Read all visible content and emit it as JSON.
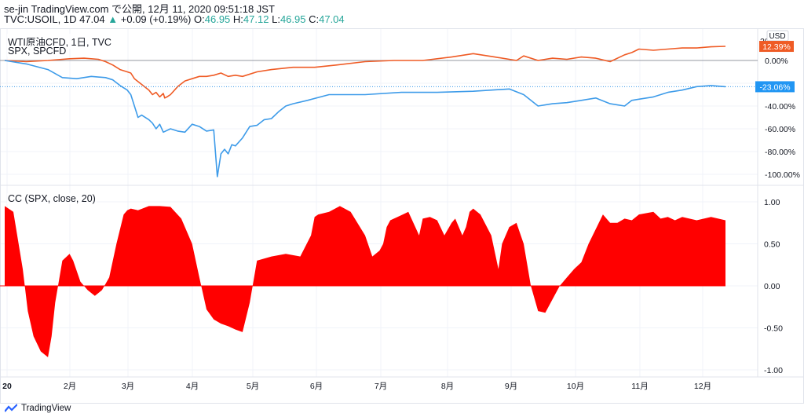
{
  "header": {
    "publisher": "se-jin TradingView.com で公開, 12月 11, 2020 09:51:18 JST",
    "symbol_line": "TVC:USOIL, 1D",
    "last": "47.04",
    "change": "+0.09 (+0.19%)",
    "o_label": "O:",
    "o_value": "46.95",
    "h_label": "H:",
    "h_value": "47.12",
    "l_label": "L:",
    "l_value": "46.95",
    "c_label": "C:",
    "c_value": "47.04"
  },
  "pane1": {
    "label1": "WTI原油CFD, 1日, TVC",
    "label2": "SPX, SPCFD",
    "usd_label": "USD"
  },
  "pane2": {
    "label": "CC (SPX, close, 20)"
  },
  "footer": {
    "brand": "TradingView"
  },
  "colors": {
    "wti": "#ef5b25",
    "spx": "#3d9be9",
    "cc_fill": "#ff0000",
    "grid": "#f0f3fa",
    "border": "#e0e3eb",
    "zero_line": "#9598a1",
    "label_red_bg": "#ef5b25",
    "label_blue_bg": "#2196f3"
  },
  "chart_data": [
    {
      "type": "line",
      "title": "WTI原油CFD, 1日, TVC / SPX, SPCFD",
      "ylabel": "%",
      "ylim": [
        -105,
        20
      ],
      "yticks": [
        -100,
        -80,
        -60,
        -40,
        -20,
        0
      ],
      "ytick_labels": [
        "-100.00%",
        "-80.00%",
        "-60.00%",
        "-40.00%",
        "",
        "0.00%"
      ],
      "x_tick_labels": [
        "20",
        "2月",
        "3月",
        "4月",
        "5月",
        "6月",
        "7月",
        "8月",
        "9月",
        "10月",
        "11月",
        "12月"
      ],
      "last_value_labels": {
        "wti": "12.39%",
        "spx": "-23.06%"
      },
      "series": [
        {
          "name": "WTI原油CFD",
          "x": [
            0,
            0.03,
            0.06,
            0.09,
            0.11,
            0.13,
            0.14,
            0.15,
            0.16,
            0.17,
            0.175,
            0.18,
            0.19,
            0.2,
            0.205,
            0.21,
            0.215,
            0.22,
            0.222,
            0.225,
            0.23,
            0.24,
            0.25,
            0.26,
            0.27,
            0.28,
            0.29,
            0.3,
            0.31,
            0.32,
            0.33,
            0.35,
            0.37,
            0.4,
            0.43,
            0.46,
            0.5,
            0.54,
            0.58,
            0.62,
            0.65,
            0.68,
            0.7,
            0.71,
            0.72,
            0.74,
            0.76,
            0.78,
            0.8,
            0.82,
            0.84,
            0.86,
            0.87,
            0.88,
            0.9,
            0.92,
            0.94,
            0.96,
            0.98,
            1.0
          ],
          "values": [
            0,
            -1,
            0,
            1.5,
            2,
            1,
            -1,
            -4,
            -8,
            -10,
            -11,
            -16,
            -21,
            -26,
            -30,
            -28,
            -32,
            -29,
            -33,
            -32,
            -30,
            -23,
            -18,
            -16,
            -14,
            -14,
            -13,
            -11,
            -14,
            -13,
            -14,
            -10,
            -8,
            -6,
            -6,
            -4,
            -1,
            0,
            0,
            3,
            6,
            3,
            1,
            0,
            4,
            0,
            2,
            1,
            3,
            2,
            -1,
            5,
            7,
            10,
            9,
            10,
            11,
            11,
            12,
            12.39
          ]
        },
        {
          "name": "SPX",
          "x": [
            0,
            0.03,
            0.06,
            0.08,
            0.1,
            0.12,
            0.14,
            0.15,
            0.16,
            0.17,
            0.175,
            0.18,
            0.185,
            0.19,
            0.2,
            0.205,
            0.21,
            0.215,
            0.22,
            0.23,
            0.24,
            0.25,
            0.26,
            0.27,
            0.28,
            0.29,
            0.295,
            0.3,
            0.305,
            0.31,
            0.315,
            0.32,
            0.33,
            0.34,
            0.35,
            0.36,
            0.37,
            0.38,
            0.39,
            0.4,
            0.42,
            0.45,
            0.5,
            0.55,
            0.6,
            0.65,
            0.7,
            0.72,
            0.74,
            0.76,
            0.78,
            0.8,
            0.82,
            0.84,
            0.86,
            0.87,
            0.88,
            0.9,
            0.92,
            0.94,
            0.96,
            0.98,
            1.0
          ],
          "values": [
            0,
            -3,
            -8,
            -15,
            -16,
            -14,
            -15,
            -17,
            -22,
            -26,
            -30,
            -40,
            -50,
            -48,
            -52,
            -55,
            -60,
            -56,
            -63,
            -60,
            -62,
            -63,
            -56,
            -58,
            -62,
            -61,
            -102,
            -82,
            -78,
            -82,
            -74,
            -75,
            -68,
            -58,
            -57,
            -52,
            -51,
            -45,
            -40,
            -38,
            -35,
            -30,
            -30,
            -28,
            -28,
            -27,
            -25,
            -30,
            -40,
            -38,
            -37,
            -35,
            -33,
            -38,
            -40,
            -35,
            -34,
            -32,
            -28,
            -26,
            -23,
            -22,
            -23.06
          ]
        }
      ]
    },
    {
      "type": "area",
      "title": "CC (SPX, close, 20)",
      "ylim": [
        -1.05,
        1.05
      ],
      "yticks": [
        1.0,
        0.5,
        0.0,
        -0.5,
        -1.0
      ],
      "ytick_labels": [
        "1.00",
        "0.50",
        "0.00",
        "-0.50",
        "-1.00"
      ],
      "series": [
        {
          "name": "CC (SPX, close, 20)",
          "x": [
            0,
            0.012,
            0.025,
            0.032,
            0.04,
            0.05,
            0.06,
            0.065,
            0.07,
            0.08,
            0.09,
            0.095,
            0.105,
            0.115,
            0.125,
            0.135,
            0.145,
            0.155,
            0.165,
            0.17,
            0.175,
            0.185,
            0.2,
            0.215,
            0.23,
            0.245,
            0.26,
            0.27,
            0.28,
            0.29,
            0.3,
            0.31,
            0.32,
            0.33,
            0.34,
            0.35,
            0.37,
            0.39,
            0.41,
            0.425,
            0.43,
            0.435,
            0.45,
            0.465,
            0.48,
            0.5,
            0.51,
            0.52,
            0.525,
            0.53,
            0.535,
            0.545,
            0.56,
            0.575,
            0.58,
            0.59,
            0.6,
            0.61,
            0.62,
            0.625,
            0.635,
            0.64,
            0.645,
            0.65,
            0.66,
            0.675,
            0.685,
            0.69,
            0.7,
            0.71,
            0.72,
            0.73,
            0.74,
            0.75,
            0.77,
            0.78,
            0.79,
            0.8,
            0.81,
            0.83,
            0.84,
            0.85,
            0.86,
            0.87,
            0.88,
            0.9,
            0.91,
            0.92,
            0.93,
            0.94,
            0.95,
            0.96,
            0.97,
            0.98,
            0.99,
            1.0
          ],
          "values": [
            0.95,
            0.88,
            0.2,
            -0.3,
            -0.6,
            -0.78,
            -0.85,
            -0.6,
            -0.2,
            0.3,
            0.38,
            0.3,
            0.05,
            -0.05,
            -0.12,
            -0.05,
            0.1,
            0.5,
            0.85,
            0.9,
            0.92,
            0.9,
            0.95,
            0.95,
            0.94,
            0.8,
            0.5,
            0.1,
            -0.28,
            -0.4,
            -0.45,
            -0.48,
            -0.52,
            -0.55,
            -0.2,
            0.3,
            0.35,
            0.38,
            0.35,
            0.6,
            0.82,
            0.85,
            0.88,
            0.95,
            0.88,
            0.6,
            0.35,
            0.42,
            0.5,
            0.7,
            0.78,
            0.82,
            0.88,
            0.6,
            0.8,
            0.82,
            0.78,
            0.6,
            0.75,
            0.8,
            0.6,
            0.7,
            0.88,
            0.92,
            0.85,
            0.6,
            0.2,
            0.5,
            0.7,
            0.75,
            0.5,
            0.0,
            -0.3,
            -0.32,
            0.0,
            0.1,
            0.2,
            0.28,
            0.5,
            0.85,
            0.75,
            0.75,
            0.8,
            0.78,
            0.85,
            0.88,
            0.8,
            0.82,
            0.78,
            0.82,
            0.8,
            0.78,
            0.8,
            0.82,
            0.8,
            0.78
          ]
        }
      ]
    }
  ]
}
